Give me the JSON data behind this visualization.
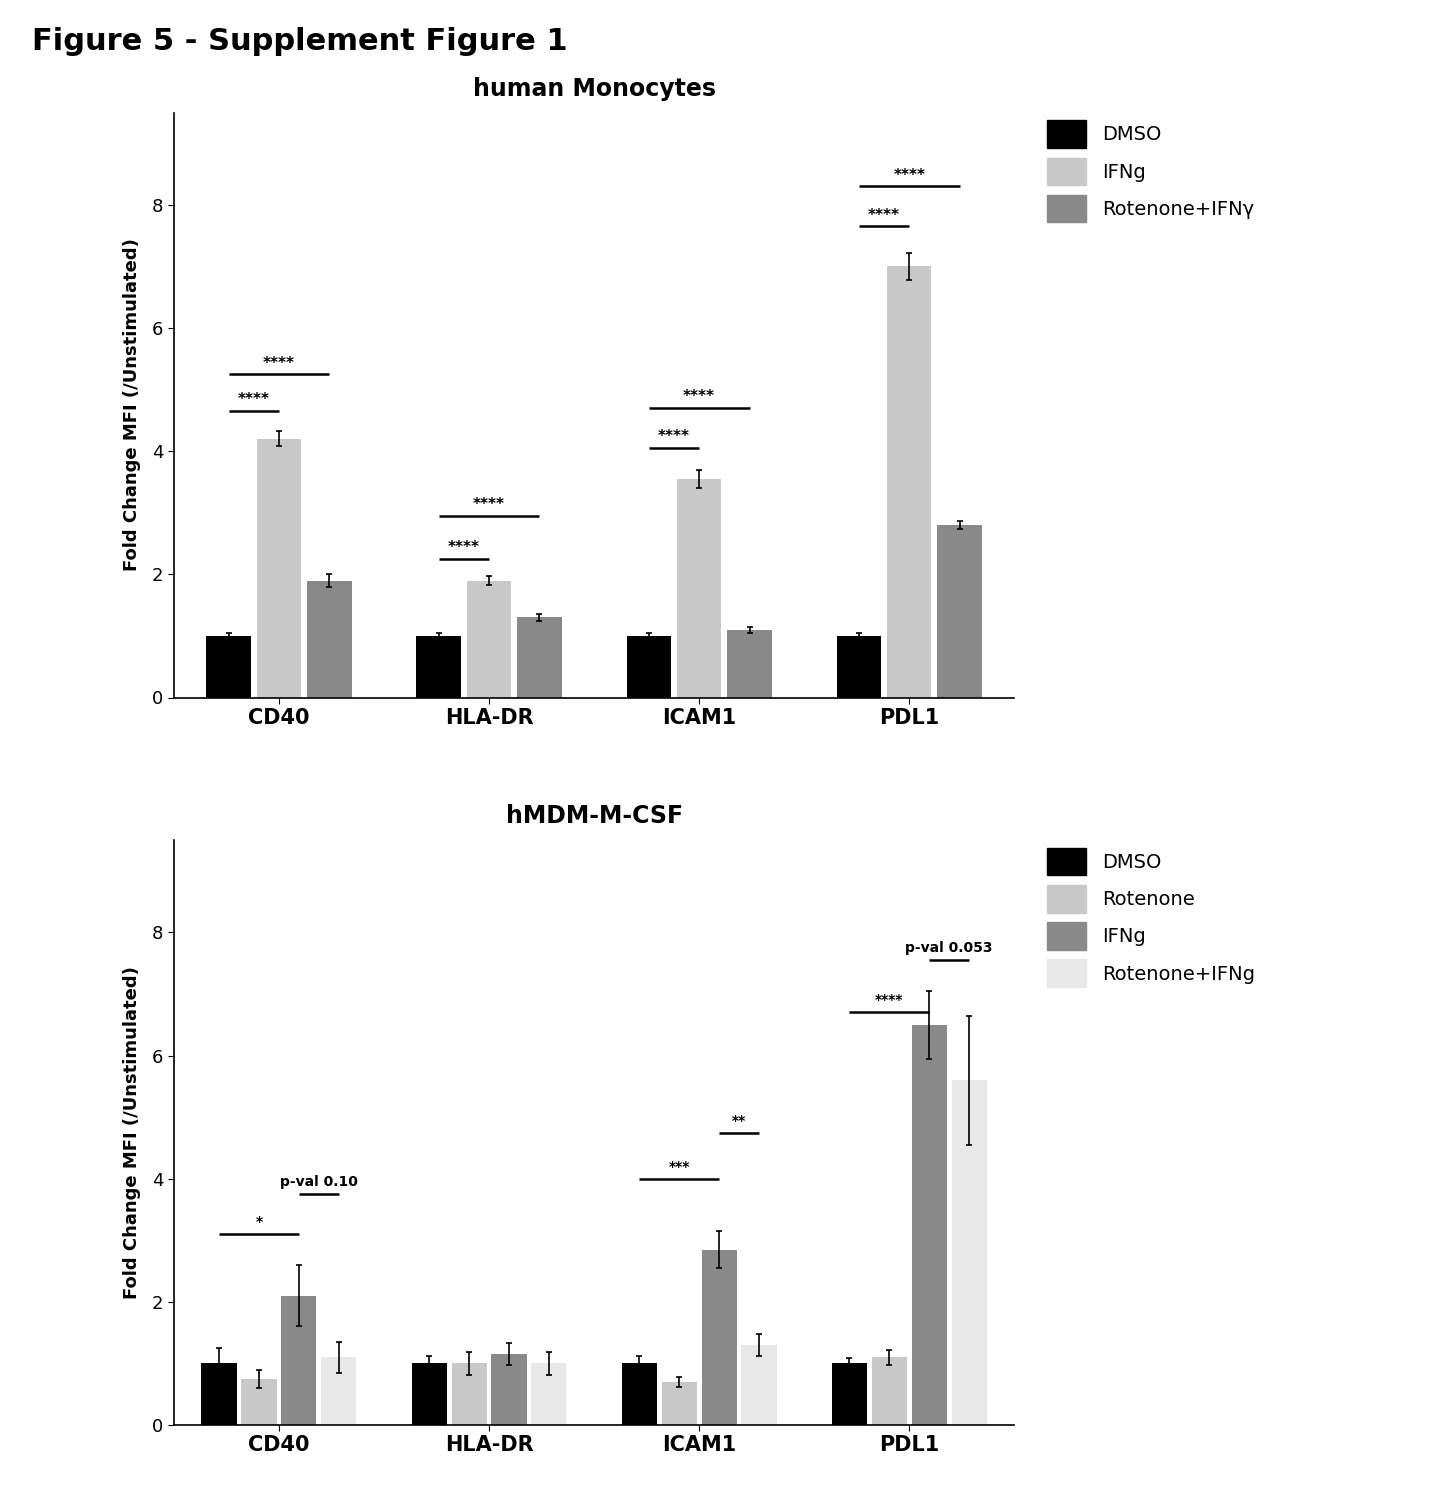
{
  "title1": "human Monocytes",
  "title2": "hMDM-M-CSF",
  "figure_title": "Figure 5 - Supplement Figure 1",
  "ylabel": "Fold Change MFI (/Unstimulated)",
  "categories": [
    "CD40",
    "HLA-DR",
    "ICAM1",
    "PDL1"
  ],
  "plot1": {
    "legend_labels": [
      "DMSO",
      "IFNg",
      "Rotenone+IFNγ"
    ],
    "colors": [
      "#000000",
      "#c8c8c8",
      "#898989"
    ],
    "bar_values": [
      [
        1.0,
        4.2,
        1.9
      ],
      [
        1.0,
        1.9,
        1.3
      ],
      [
        1.0,
        3.55,
        1.1
      ],
      [
        1.0,
        7.0,
        2.8
      ]
    ],
    "bar_errors": [
      [
        0.05,
        0.12,
        0.1
      ],
      [
        0.04,
        0.07,
        0.05
      ],
      [
        0.04,
        0.14,
        0.05
      ],
      [
        0.04,
        0.22,
        0.06
      ]
    ],
    "sig_annotations": [
      {
        "cat": 0,
        "bars": [
          0,
          1
        ],
        "y": 4.65,
        "text": "****"
      },
      {
        "cat": 0,
        "bars": [
          0,
          2
        ],
        "y": 5.25,
        "text": "****"
      },
      {
        "cat": 1,
        "bars": [
          0,
          1
        ],
        "y": 2.25,
        "text": "****"
      },
      {
        "cat": 1,
        "bars": [
          0,
          2
        ],
        "y": 2.95,
        "text": "****"
      },
      {
        "cat": 2,
        "bars": [
          0,
          1
        ],
        "y": 4.05,
        "text": "****"
      },
      {
        "cat": 2,
        "bars": [
          0,
          2
        ],
        "y": 4.7,
        "text": "****"
      },
      {
        "cat": 3,
        "bars": [
          0,
          1
        ],
        "y": 7.65,
        "text": "****"
      },
      {
        "cat": 3,
        "bars": [
          0,
          2
        ],
        "y": 8.3,
        "text": "****"
      }
    ]
  },
  "plot2": {
    "legend_labels": [
      "DMSO",
      "Rotenone",
      "IFNg",
      "Rotenone+IFNg"
    ],
    "colors": [
      "#000000",
      "#c8c8c8",
      "#898989",
      "#e8e8e8"
    ],
    "bar_values": [
      [
        1.0,
        0.75,
        2.1,
        1.1
      ],
      [
        1.0,
        1.0,
        1.15,
        1.0
      ],
      [
        1.0,
        0.7,
        2.85,
        1.3
      ],
      [
        1.0,
        1.1,
        6.5,
        5.6
      ]
    ],
    "bar_errors": [
      [
        0.25,
        0.15,
        0.5,
        0.25
      ],
      [
        0.12,
        0.18,
        0.18,
        0.18
      ],
      [
        0.12,
        0.08,
        0.3,
        0.18
      ],
      [
        0.08,
        0.12,
        0.55,
        1.05
      ]
    ],
    "sig_annotations": [
      {
        "cat": 0,
        "bars": [
          0,
          2
        ],
        "y": 3.1,
        "text": "*"
      },
      {
        "cat": 0,
        "bars": [
          2,
          3
        ],
        "y": 3.75,
        "text": "p-val 0.10"
      },
      {
        "cat": 2,
        "bars": [
          0,
          2
        ],
        "y": 4.0,
        "text": "***"
      },
      {
        "cat": 2,
        "bars": [
          2,
          3
        ],
        "y": 4.75,
        "text": "**"
      },
      {
        "cat": 3,
        "bars": [
          0,
          2
        ],
        "y": 6.7,
        "text": "****"
      },
      {
        "cat": 3,
        "bars": [
          2,
          3
        ],
        "y": 7.55,
        "text": "p-val 0.053"
      }
    ]
  }
}
